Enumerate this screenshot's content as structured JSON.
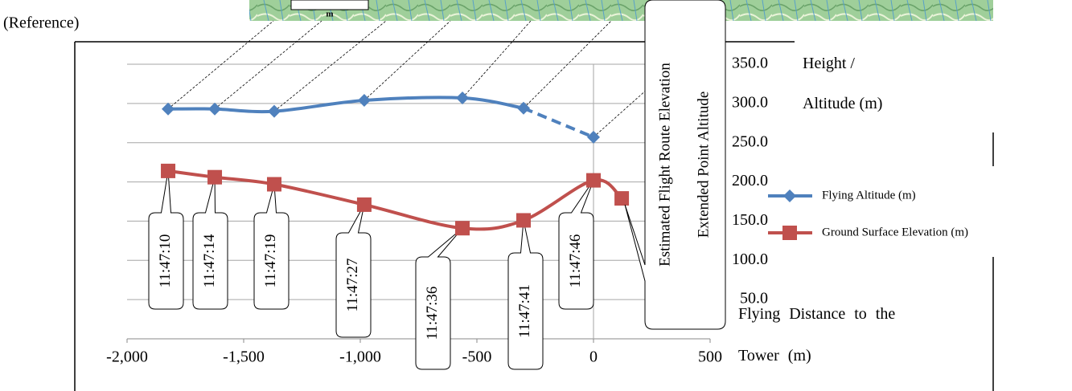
{
  "reference_label": "(Reference)",
  "map_scale_label": "m",
  "chart_data": {
    "type": "line",
    "y_axis_label": "Height / Altitude (m)",
    "x_axis_label": "Flying Distance to the Tower (m)",
    "xlim": [
      -2000,
      500
    ],
    "xticks": [
      {
        "value": -2000,
        "label": "-2,000"
      },
      {
        "value": -1500,
        "label": "-1,500"
      },
      {
        "value": -1000,
        "label": "-1,000"
      },
      -500,
      0,
      500
    ],
    "ylim": [
      0,
      350
    ],
    "yticks": [
      {
        "value": 50,
        "label": "50.0"
      },
      {
        "value": 100,
        "label": "100.0"
      },
      {
        "value": 150,
        "label": "150.0"
      },
      {
        "value": 200,
        "label": "200.0"
      },
      {
        "value": 250,
        "label": "250.0"
      },
      {
        "value": 300,
        "label": "300.0"
      },
      {
        "value": 350,
        "label": "350.0"
      }
    ],
    "grid": true,
    "series": [
      {
        "name": "Flying Altitude (m)",
        "color": "#4f81bd",
        "marker": "diamond",
        "dashed_from_index": 5,
        "x": [
          -1824,
          -1624,
          -1369,
          -983,
          -562,
          -300,
          0
        ],
        "values": [
          293,
          293,
          290,
          304,
          307,
          294,
          257
        ]
      },
      {
        "name": "Ground Surface Elevation (m)",
        "color": "#c0504d",
        "marker": "square",
        "x": [
          -1824,
          -1624,
          -1369,
          -983,
          -562,
          -300,
          0,
          121
        ],
        "values": [
          214,
          206,
          197,
          171,
          141,
          151,
          202,
          179
        ]
      }
    ],
    "time_labels": [
      "11:47:10",
      "11:47:14",
      "11:47:19",
      "11:47:27",
      "11:47:36",
      "11:47:41",
      "11:47:46"
    ],
    "annotations": [
      "Estimated Flight Route Elevation",
      "Extended Point Altitude"
    ]
  }
}
